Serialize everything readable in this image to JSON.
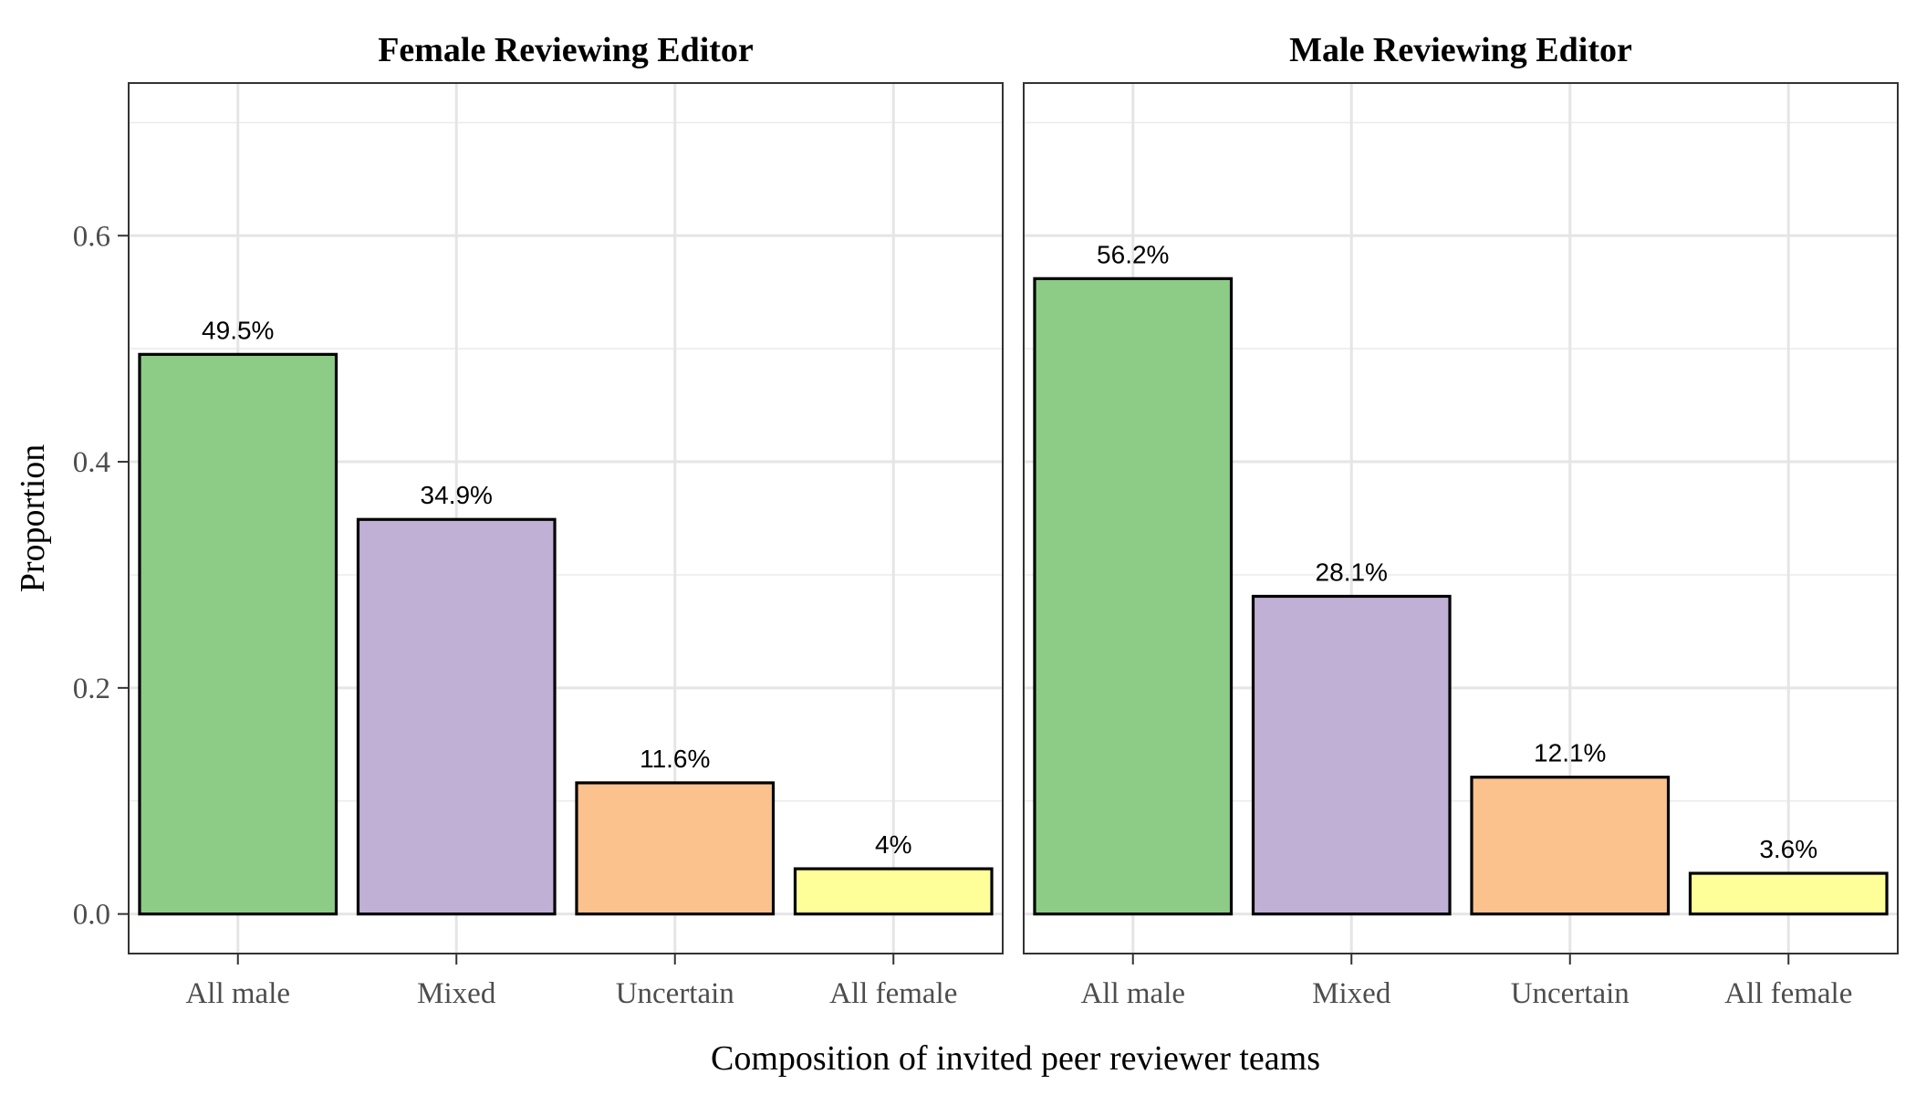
{
  "chart_data": {
    "type": "bar",
    "xlabel": "Composition of invited peer reviewer teams",
    "ylabel": "Proportion",
    "ylim": [
      -0.035,
      0.735
    ],
    "yticks": [
      0.0,
      0.2,
      0.4,
      0.6
    ],
    "ytick_labels": [
      "0.0",
      "0.2",
      "0.4",
      "0.6"
    ],
    "categories": [
      "All male",
      "Mixed",
      "Uncertain",
      "All female"
    ],
    "colors": [
      "#8dcc87",
      "#c0b0d6",
      "#fbc28e",
      "#ffff99"
    ],
    "grid": true,
    "panels": [
      {
        "title": "Female Reviewing Editor",
        "values": [
          0.495,
          0.349,
          0.116,
          0.04
        ],
        "labels": [
          "49.5%",
          "34.9%",
          "11.6%",
          "4%"
        ]
      },
      {
        "title": "Male Reviewing Editor",
        "values": [
          0.562,
          0.281,
          0.121,
          0.036
        ],
        "labels": [
          "56.2%",
          "28.1%",
          "12.1%",
          "3.6%"
        ]
      }
    ]
  }
}
